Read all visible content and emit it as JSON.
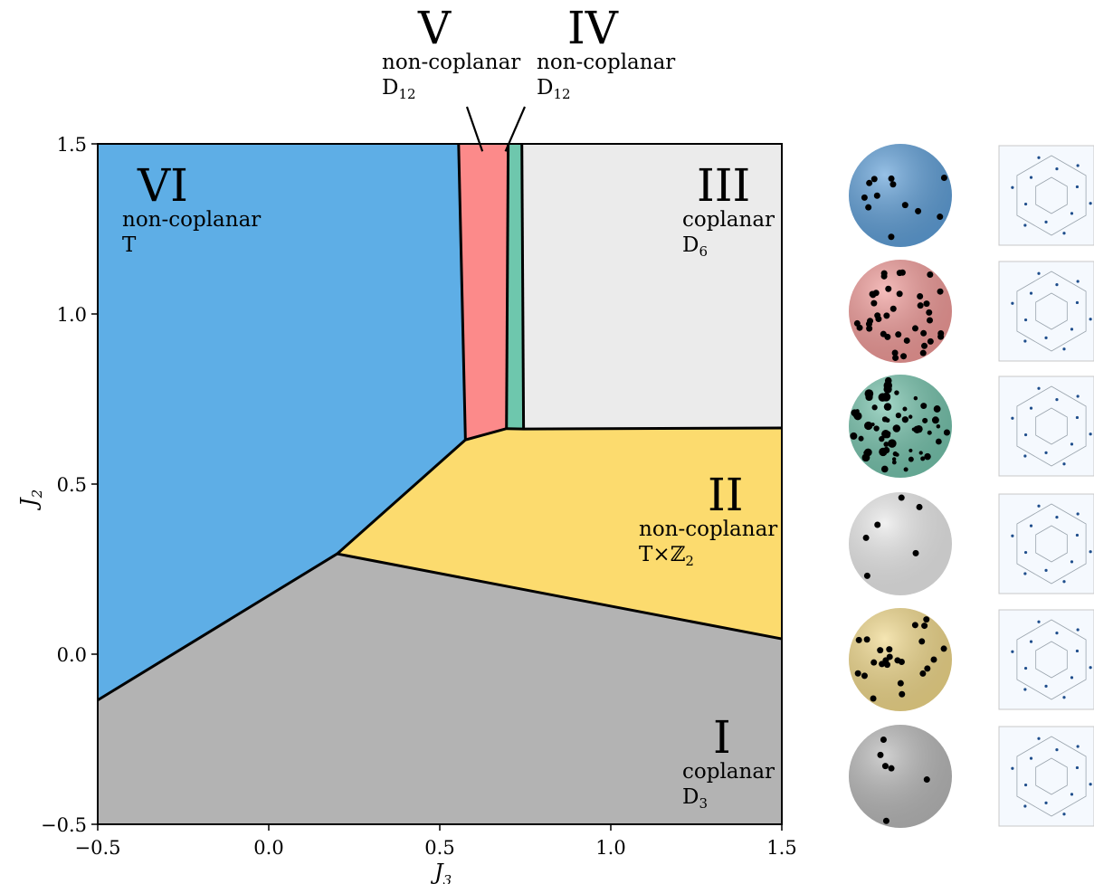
{
  "chart_data": {
    "type": "area",
    "xlabel": "J",
    "xlabel_sub": "3",
    "ylabel": "J",
    "ylabel_sub": "2",
    "xlim": [
      -0.5,
      1.5
    ],
    "ylim": [
      -0.5,
      1.5
    ],
    "xticks": [
      -0.5,
      0.0,
      0.5,
      1.0,
      1.5
    ],
    "yticks": [
      -0.5,
      0.0,
      0.5,
      1.0,
      1.5
    ],
    "xtick_labels": [
      "−0.5",
      "0.0",
      "0.5",
      "1.0",
      "1.5"
    ],
    "ytick_labels": [
      "−0.5",
      "0.0",
      "0.5",
      "1.0",
      "1.5"
    ],
    "grid": false,
    "phases": [
      {
        "id": "I",
        "roman": "I",
        "order": "coplanar",
        "group": "D",
        "group_sub": "3",
        "color": "#b3b3b3",
        "polygon": [
          [
            -0.5,
            -0.5
          ],
          [
            1.5,
            -0.5
          ],
          [
            1.5,
            0.045
          ],
          [
            0.2,
            0.295
          ],
          [
            -0.5,
            -0.135
          ]
        ]
      },
      {
        "id": "II",
        "roman": "II",
        "order": "non-coplanar",
        "group": "T×ℤ",
        "group_sub": "2",
        "color": "#fcdb6e",
        "polygon": [
          [
            0.2,
            0.295
          ],
          [
            1.5,
            0.045
          ],
          [
            1.5,
            0.665
          ],
          [
            0.745,
            0.662
          ],
          [
            0.695,
            0.663
          ],
          [
            0.63,
            0.645
          ],
          [
            0.575,
            0.63
          ]
        ]
      },
      {
        "id": "III",
        "roman": "III",
        "order": "coplanar",
        "group": "D",
        "group_sub": "6",
        "color": "#ebebeb",
        "polygon": [
          [
            0.74,
            1.5
          ],
          [
            1.5,
            1.5
          ],
          [
            1.5,
            0.665
          ],
          [
            0.745,
            0.662
          ]
        ]
      },
      {
        "id": "IV",
        "roman": "IV",
        "order": "non-coplanar",
        "group": "D",
        "group_sub": "12",
        "color": "#6ec7ad",
        "polygon": [
          [
            0.7,
            1.5
          ],
          [
            0.74,
            1.5
          ],
          [
            0.745,
            0.662
          ],
          [
            0.695,
            0.663
          ]
        ]
      },
      {
        "id": "V",
        "roman": "V",
        "order": "non-coplanar",
        "group": "D",
        "group_sub": "12",
        "color": "#fc8a8a",
        "polygon": [
          [
            0.555,
            1.5
          ],
          [
            0.7,
            1.5
          ],
          [
            0.695,
            0.663
          ],
          [
            0.63,
            0.645
          ],
          [
            0.575,
            0.63
          ]
        ]
      },
      {
        "id": "VI",
        "roman": "VI",
        "order": "non-coplanar",
        "group": "T",
        "group_sub": "",
        "color": "#5eaee6",
        "polygon": [
          [
            -0.5,
            1.5
          ],
          [
            0.555,
            1.5
          ],
          [
            0.575,
            0.63
          ],
          [
            0.2,
            0.295
          ],
          [
            -0.5,
            -0.135
          ]
        ]
      }
    ],
    "boundaries": [
      [
        [
          -0.5,
          -0.135
        ],
        [
          0.2,
          0.295
        ],
        [
          1.5,
          0.045
        ]
      ],
      [
        [
          0.2,
          0.295
        ],
        [
          0.575,
          0.63
        ],
        [
          0.63,
          0.645
        ],
        [
          0.695,
          0.663
        ],
        [
          0.745,
          0.662
        ],
        [
          1.5,
          0.665
        ]
      ],
      [
        [
          0.555,
          1.5
        ],
        [
          0.575,
          0.63
        ]
      ],
      [
        [
          0.7,
          1.5
        ],
        [
          0.695,
          0.663
        ]
      ],
      [
        [
          0.74,
          1.5
        ],
        [
          0.745,
          0.662
        ]
      ]
    ],
    "pointer_targets": {
      "V": [
        0.63,
        1.47
      ],
      "IV": [
        0.7,
        1.47
      ]
    }
  },
  "insets": [
    {
      "phase": "VI",
      "sphere_color": "#5f9fd8",
      "spots": 12,
      "pattern": "sparse"
    },
    {
      "phase": "V",
      "sphere_color": "#f09a98",
      "spots": 40,
      "pattern": "dense"
    },
    {
      "phase": "IV",
      "sphere_color": "#75c3ac",
      "spots": 60,
      "pattern": "streaks"
    },
    {
      "phase": "III",
      "sphere_color": "#e9e9e9",
      "spots": 6,
      "pattern": "sparse"
    },
    {
      "phase": "II",
      "sphere_color": "#f0d88a",
      "spots": 24,
      "pattern": "pairs"
    },
    {
      "phase": "I",
      "sphere_color": "#b8b8b8",
      "spots": 6,
      "pattern": "sparse"
    }
  ]
}
